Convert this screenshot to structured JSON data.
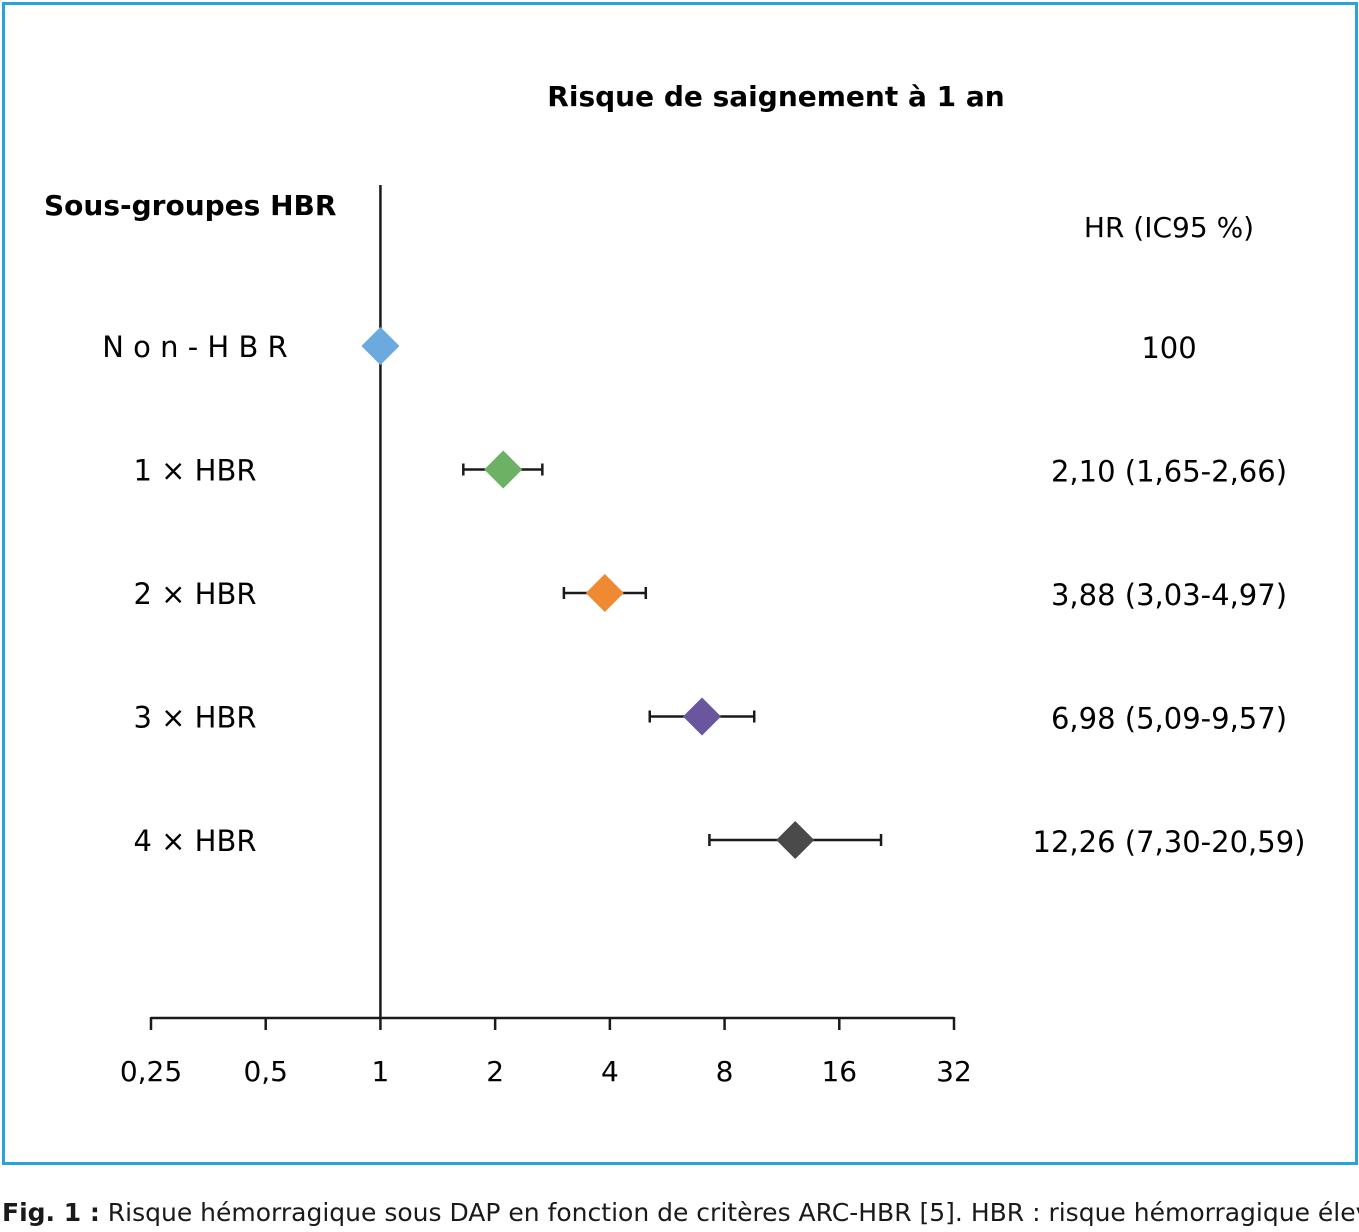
{
  "chart_data": {
    "type": "forest",
    "title": "Risque de saignement à 1 an",
    "row_header": "Sous-groupes HBR",
    "value_header": "HR (IC95 %)",
    "x_scale": "log2",
    "xlim": [
      0.25,
      32
    ],
    "ticks": [
      {
        "value": 0.25,
        "label": "0,25"
      },
      {
        "value": 0.5,
        "label": "0,5"
      },
      {
        "value": 1,
        "label": "1"
      },
      {
        "value": 2,
        "label": "2"
      },
      {
        "value": 4,
        "label": "4"
      },
      {
        "value": 8,
        "label": "8"
      },
      {
        "value": 16,
        "label": "16"
      },
      {
        "value": 32,
        "label": "32"
      }
    ],
    "reference_line": 1,
    "rows": [
      {
        "label": "N o n - H B R",
        "hr": 1.0,
        "lo": null,
        "hi": null,
        "text": "100",
        "color": "#6aaade"
      },
      {
        "label": "1 × HBR",
        "hr": 2.1,
        "lo": 1.65,
        "hi": 2.66,
        "text": "2,10 (1,65-2,66)",
        "color": "#6cb164"
      },
      {
        "label": "2 × HBR",
        "hr": 3.88,
        "lo": 3.03,
        "hi": 4.97,
        "text": "3,88 (3,03-4,97)",
        "color": "#ef8a33"
      },
      {
        "label": "3 × HBR",
        "hr": 6.98,
        "lo": 5.09,
        "hi": 9.57,
        "text": "6,98 (5,09-9,57)",
        "color": "#6a569f"
      },
      {
        "label": "4 × HBR",
        "hr": 12.26,
        "lo": 7.3,
        "hi": 20.59,
        "text": "12,26 (7,30-20,59)",
        "color": "#4a4a4a"
      }
    ]
  },
  "caption": {
    "lead": "Fig. 1 :",
    "text": " Risque hémorragique sous DAP en fonction de critères ARC-HBR [5]. HBR : risque hémorragique élevé."
  },
  "colors": {
    "frame": "#29a3dc",
    "axis": "#1a1a1a"
  }
}
